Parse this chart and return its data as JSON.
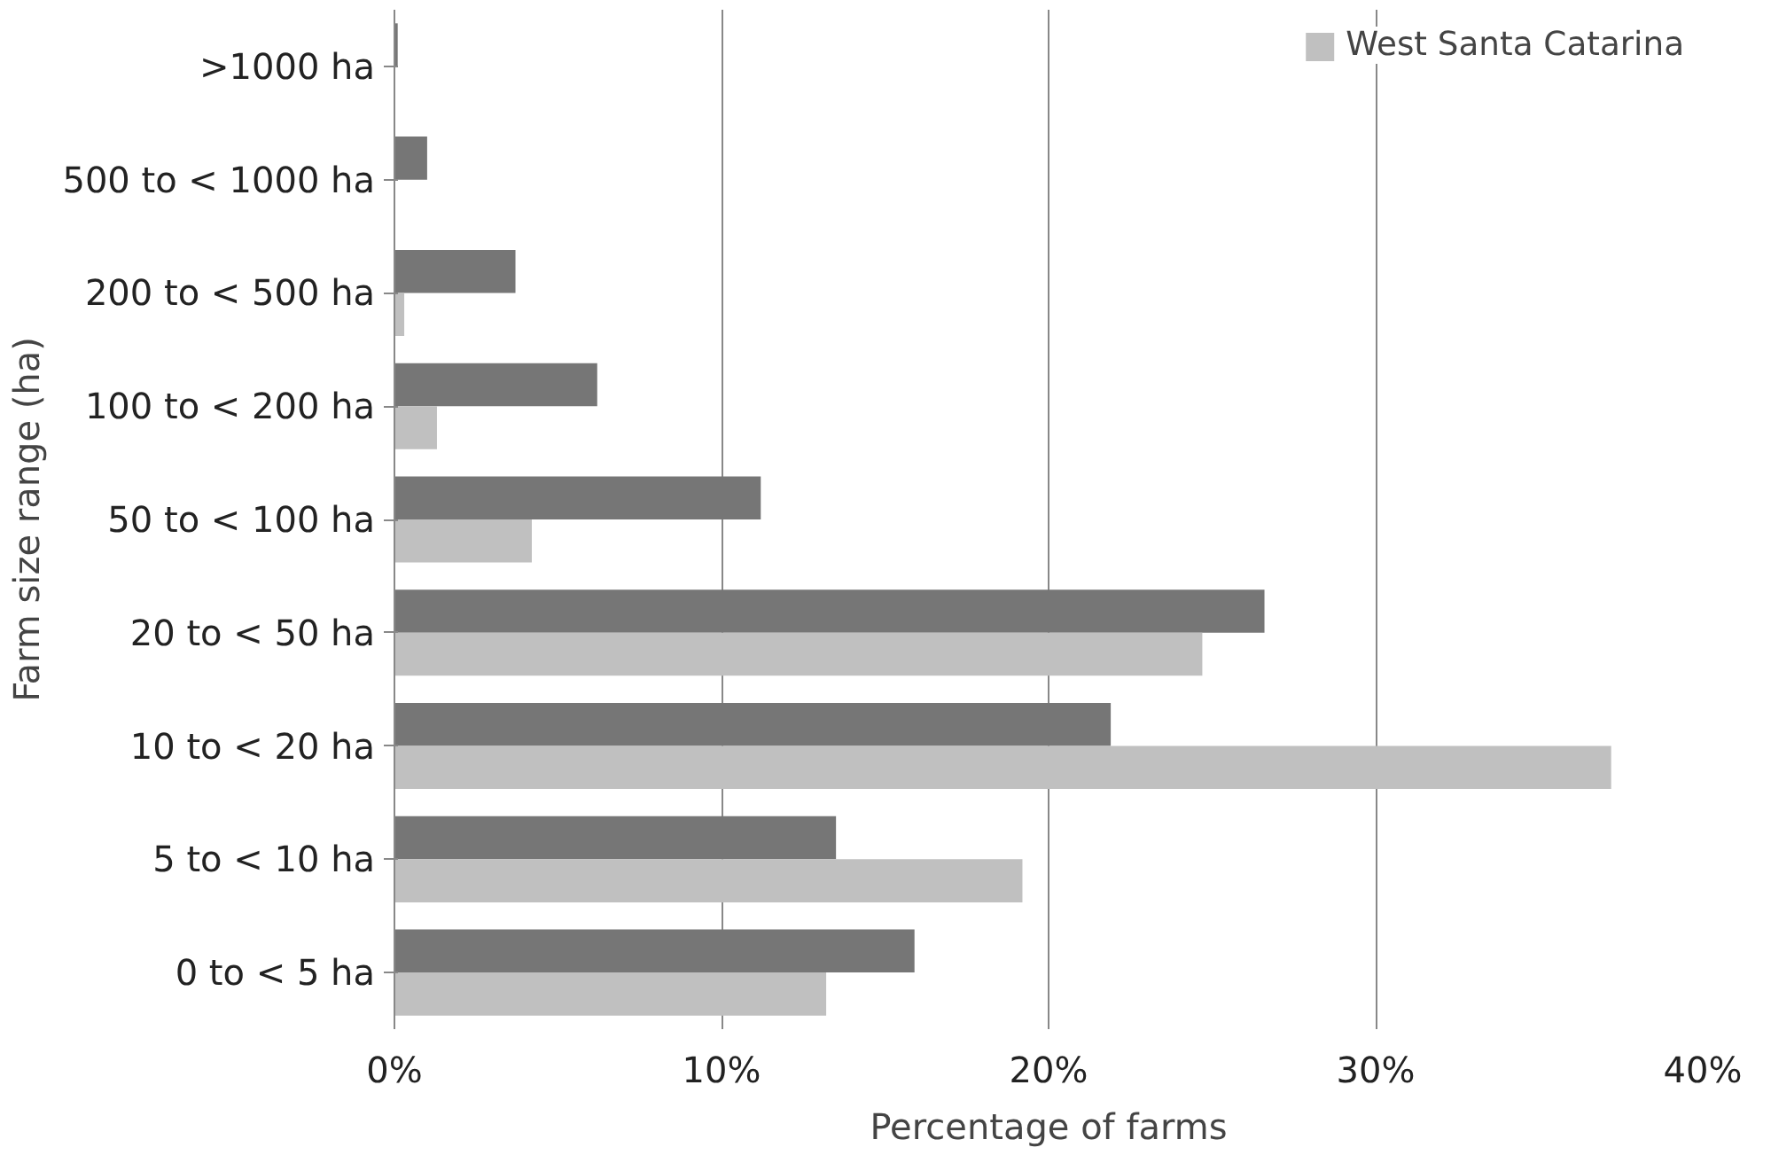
{
  "chart_data": {
    "type": "bar",
    "orientation": "horizontal",
    "xlabel": "Percentage of farms",
    "ylabel": "Farm size range (ha)",
    "categories": [
      ">1000 ha",
      "500 to < 1000 ha",
      "200 to < 500 ha",
      "100 to < 200 ha",
      "50 to < 100 ha",
      "20 to < 50 ha",
      "10 to < 20 ha",
      "5 to < 10 ha",
      "0 to < 5 ha"
    ],
    "series": [
      {
        "color": "#767676",
        "values": [
          0.1,
          1.0,
          3.7,
          6.2,
          11.2,
          26.6,
          21.9,
          13.5,
          15.9
        ]
      },
      {
        "name": "West Santa Catarina",
        "color": "#c0c0c0",
        "values": [
          0,
          null,
          0.3,
          1.3,
          4.2,
          24.7,
          37.2,
          19.2,
          13.2
        ]
      }
    ],
    "xlim": [
      0,
      40
    ],
    "xticks": [
      {
        "value": 0,
        "label": "0%"
      },
      {
        "value": 10,
        "label": "10%"
      },
      {
        "value": 20,
        "label": "20%"
      },
      {
        "value": 30,
        "label": "30%"
      },
      {
        "value": 40,
        "label": "40%"
      }
    ],
    "grid": "x",
    "legend": "top right"
  }
}
